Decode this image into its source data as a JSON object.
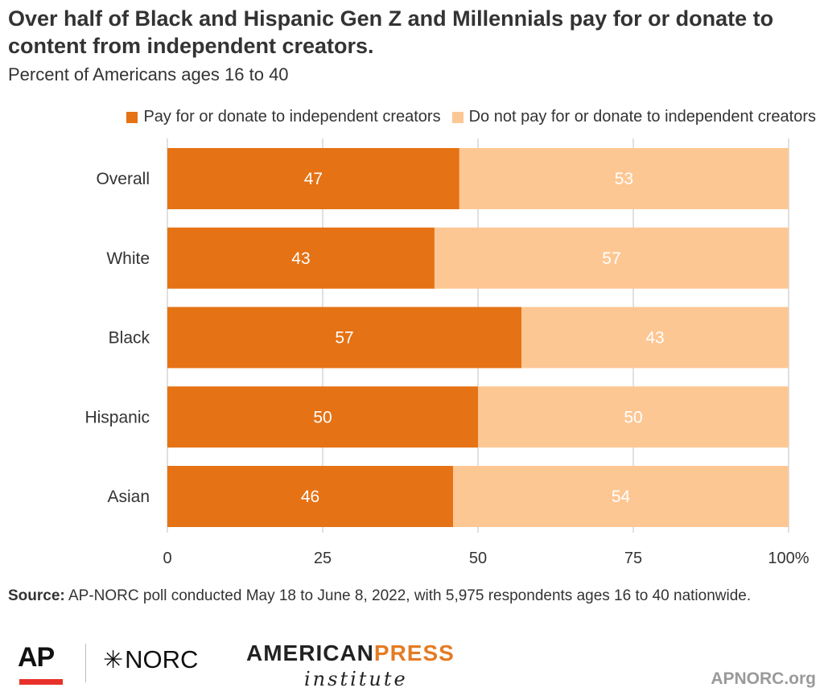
{
  "title": "Over half of Black and Hispanic Gen Z and Millennials pay for or donate to content from independent creators.",
  "subtitle": "Percent of Americans ages 16 to 40",
  "colors": {
    "pay": "#e57215",
    "not_pay": "#fdc794",
    "grid": "#cccccc",
    "text": "#333333"
  },
  "chart_data": {
    "type": "bar",
    "orientation": "horizontal",
    "stacked": true,
    "categories": [
      "Overall",
      "White",
      "Black",
      "Hispanic",
      "Asian"
    ],
    "series": [
      {
        "name": "Pay for or donate to independent creators",
        "values": [
          47,
          43,
          57,
          50,
          46
        ]
      },
      {
        "name": "Do not pay for or donate to independent creators",
        "values": [
          53,
          57,
          43,
          50,
          54
        ]
      }
    ],
    "xlim": [
      0,
      100
    ],
    "xticks": [
      "0",
      "25",
      "50",
      "75",
      "100%"
    ],
    "grid": true,
    "legend_position": "top-right"
  },
  "source": {
    "label": "Source:",
    "text": " AP-NORC poll conducted May 18 to June 8, 2022, with 5,975 respondents ages 16 to 40 nationwide."
  },
  "logos": {
    "ap": "AP",
    "norc": "NORC",
    "api_line1_a": "AMERICAN",
    "api_line1_b": "PRESS",
    "api_line2": "institute"
  },
  "website": "APNORC.org"
}
